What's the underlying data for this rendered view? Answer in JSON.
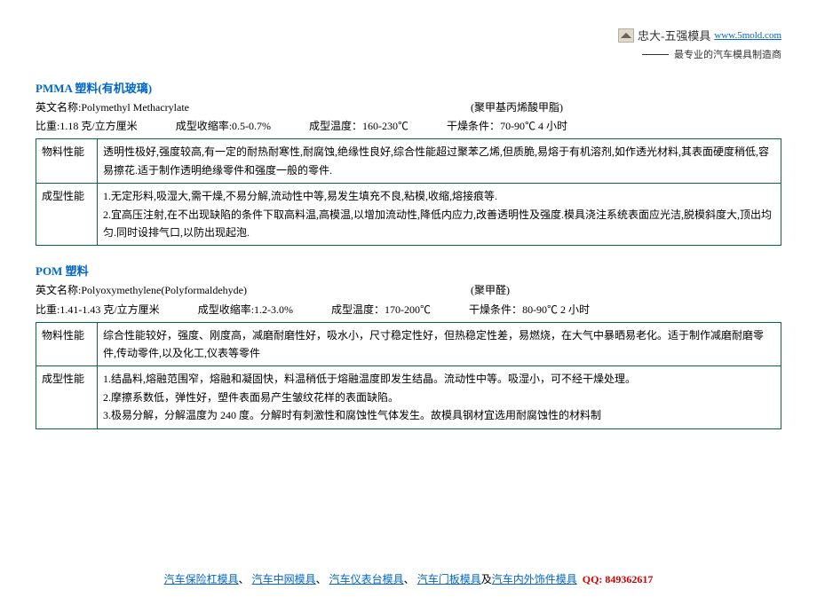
{
  "header": {
    "company": "忠大-五强模具",
    "url": "www.5mold.com",
    "tagline": "最专业的汽车模具制造商"
  },
  "pmma": {
    "title": "PMMA 塑料(有机玻璃)",
    "engLabel": "英文名称:",
    "engName": "Polymethyl Methacrylate",
    "cnName": "(聚甲基丙烯酸甲脂)",
    "p_density_label": "比重:",
    "p_density": "1.18 克/立方厘米",
    "p_shrink_label": "成型收缩率:",
    "p_shrink": "0.5-0.7%",
    "p_temp_label": "成型温度：",
    "p_temp": "160-230℃",
    "p_dry_label": "干燥条件：",
    "p_dry": "70-90℃   4 小时",
    "row1_label": "物料性能",
    "row1_text1": "透明性极好,强度较高,有一定的耐热耐寒性,耐腐蚀,绝缘性良好,综合性能超过聚苯乙烯,但质脆,易熔于有机溶剂,如作透光材料,其表面硬度稍低,容易擦花.",
    "row1_text2": "适于制作透明绝缘零件和强度一般的零件.",
    "row2_label": "成型性能",
    "row2_text": "1.无定形料,吸湿大,需干燥,不易分解,流动性中等,易发生填充不良,粘模,收缩,熔接痕等.\n2.宜高压注射,在不出现缺陷的条件下取高料温,高模温,以增加流动性,降低内应力,改善透明性及强度.模具浇注系统表面应光洁,脱模斜度大,顶出均匀.同时设排气口,以防出现起泡."
  },
  "pom": {
    "title": "POM 塑料",
    "engLabel": "英文名称:",
    "engName": "Polyoxymethylene(Polyformaldehyde)",
    "cnName": "(聚甲醛)",
    "p_density_label": "比重:",
    "p_density": "1.41-1.43 克/立方厘米",
    "p_shrink_label": "成型收缩率:",
    "p_shrink": "1.2-3.0%",
    "p_temp_label": "成型温度：",
    "p_temp": "170-200℃",
    "p_dry_label": "干燥条件：",
    "p_dry": "80-90℃   2 小时",
    "row1_label": "物料性能",
    "row1_text1": "综合性能较好，强度、刚度高，减磨耐磨性好，吸水小，尺寸稳定性好，但热稳定性差，易燃烧，在大气中暴晒易老化。",
    "row1_text2": "适于制作减磨耐磨零件,传动零件,以及化工,仪表等零件",
    "row2_label": "成型性能",
    "row2_text": "1.结晶料,熔融范围窄，熔融和凝固快，料温稍低于熔融温度即发生结晶。流动性中等。吸湿小，可不经干燥处理。\n2.摩擦系数低，弹性好，塑件表面易产生皱纹花样的表面缺陷。\n3.极易分解，分解温度为 240 度。分解时有刺激性和腐蚀性气体发生。故模具钢材宜选用耐腐蚀性的材料制"
  },
  "footer": {
    "links": [
      "汽车保险杠模具",
      "汽车中网模具",
      "汽车仪表台模具",
      "汽车门板模具"
    ],
    "joiner": "、",
    "and": "及",
    "lastLink": "汽车内外饰件模具",
    "qqLabel": "QQ: 849362617"
  }
}
